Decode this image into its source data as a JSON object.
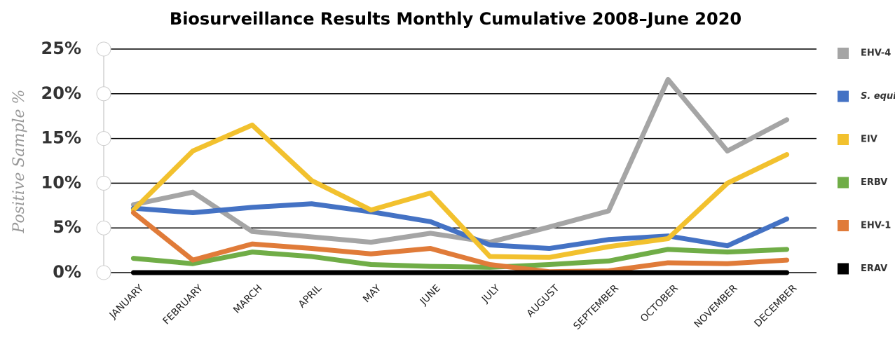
{
  "chart_data": {
    "type": "line",
    "title": "Biosurveillance Results Monthly Cumulative 2008–June 2020",
    "y_label": "Positive Sample %",
    "categories": [
      "JANUARY",
      "FEBRUARY",
      "MARCH",
      "APRIL",
      "MAY",
      "JUNE",
      "JULY",
      "AUGUST",
      "SEPTEMBER",
      "OCTOBER",
      "NOVEMBER",
      "DECEMBER"
    ],
    "ylim": [
      0,
      25
    ],
    "yticks": [
      {
        "value": 0,
        "label": "0%"
      },
      {
        "value": 5,
        "label": "5%"
      },
      {
        "value": 10,
        "label": "10%"
      },
      {
        "value": 15,
        "label": "15%"
      },
      {
        "value": 20,
        "label": "20%"
      },
      {
        "value": 25,
        "label": "25%"
      }
    ],
    "grid": true,
    "legend": "right",
    "series": [
      {
        "name": "EHV-4",
        "color": "#a5a5a5",
        "values": [
          7.6,
          9.0,
          4.6,
          4.0,
          3.4,
          4.4,
          3.4,
          5.1,
          6.9,
          21.6,
          13.6,
          17.1
        ]
      },
      {
        "name": "S. equi",
        "color": "#4472c4",
        "values": [
          7.2,
          6.7,
          7.3,
          7.7,
          6.8,
          5.7,
          3.1,
          2.7,
          3.7,
          4.1,
          3.0,
          6.0
        ]
      },
      {
        "name": "EIV",
        "color": "#f2c12e",
        "values": [
          7.0,
          13.6,
          16.5,
          10.3,
          7.0,
          8.9,
          1.8,
          1.7,
          2.9,
          3.8,
          10.0,
          13.2
        ]
      },
      {
        "name": "ERBV",
        "color": "#70ad47",
        "values": [
          1.6,
          1.0,
          2.3,
          1.8,
          0.9,
          0.7,
          0.6,
          0.9,
          1.3,
          2.6,
          2.3,
          2.6
        ]
      },
      {
        "name": "EHV-1",
        "color": "#e07b39",
        "values": [
          6.7,
          1.4,
          3.2,
          2.7,
          2.1,
          2.7,
          0.9,
          0.1,
          0.2,
          1.1,
          1.0,
          1.4
        ]
      },
      {
        "name": "ERAV",
        "color": "#000000",
        "values": [
          0,
          0,
          0,
          0,
          0,
          0,
          0,
          0,
          0,
          0,
          0,
          0
        ]
      }
    ]
  }
}
